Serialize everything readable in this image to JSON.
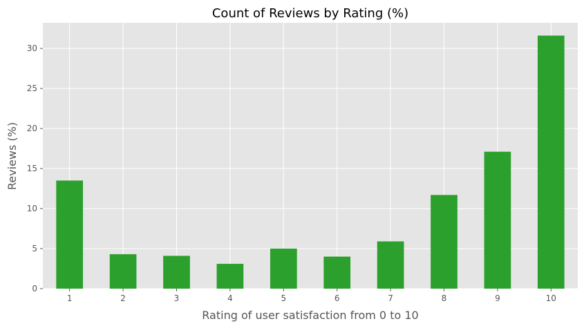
{
  "chart_data": {
    "type": "bar",
    "title": "Count of Reviews by Rating (%)",
    "xlabel": "Rating of user satisfaction from 0 to 10",
    "ylabel": "Reviews (%)",
    "categories": [
      "1",
      "2",
      "3",
      "4",
      "5",
      "6",
      "7",
      "8",
      "9",
      "10"
    ],
    "values": [
      13.5,
      4.3,
      4.1,
      3.1,
      5.0,
      4.0,
      5.9,
      11.7,
      17.1,
      31.6
    ],
    "ylim": [
      0,
      33.2
    ],
    "yticks": [
      "0",
      "5",
      "10",
      "15",
      "20",
      "25",
      "30"
    ],
    "grid": true,
    "legend": "none",
    "colors": {
      "bar": "#2ca02c",
      "plot_background": "#e5e5e5",
      "grid": "#ffffff",
      "tick_text": "#555555",
      "title_text": "#000000"
    }
  }
}
